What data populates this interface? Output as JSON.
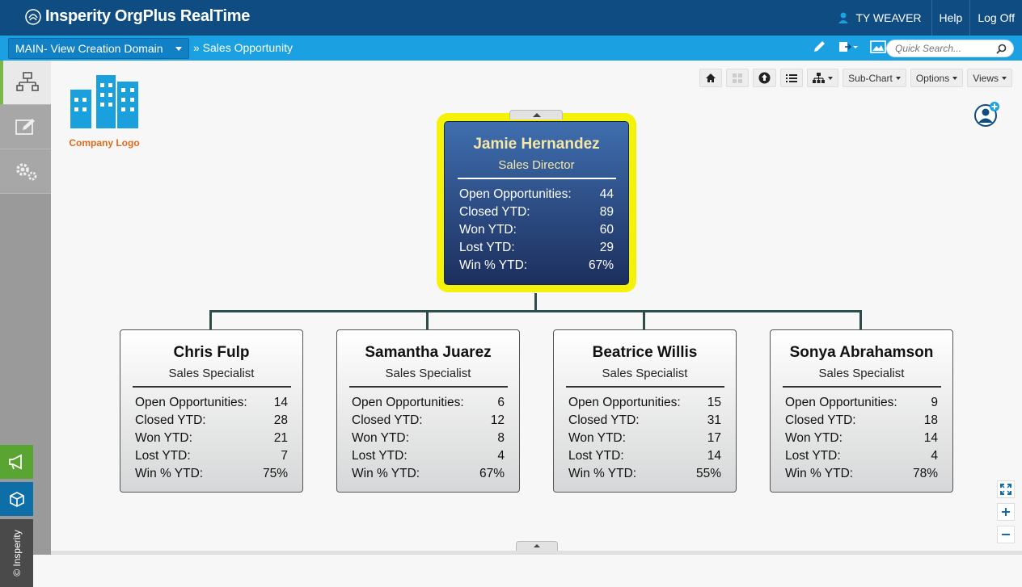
{
  "header": {
    "app_title": "Insperity OrgPlus RealTime",
    "user_name": "TY WEAVER",
    "help": "Help",
    "logoff": "Log Off"
  },
  "subbar": {
    "domain": "MAIN- View Creation Domain",
    "breadcrumb": "» Sales Opportunity",
    "search_placeholder": "Quick Search..."
  },
  "toolbar": {
    "subchart": "Sub-Chart",
    "options": "Options",
    "views": "Views"
  },
  "company_logo_caption": "Company Logo",
  "side": {
    "copyright": "© Insperity"
  },
  "root": {
    "name": "Jamie Hernandez",
    "title": "Sales Director",
    "stats": [
      {
        "label": "Open Opportunities:",
        "value": "44"
      },
      {
        "label": "Closed YTD:",
        "value": "89"
      },
      {
        "label": "Won YTD:",
        "value": "60"
      },
      {
        "label": "Lost YTD:",
        "value": "29"
      },
      {
        "label": "Win % YTD:",
        "value": "67%"
      }
    ]
  },
  "children": [
    {
      "name": "Chris Fulp",
      "title": "Sales Specialist",
      "stats": [
        {
          "label": "Open Opportunities:",
          "value": "14"
        },
        {
          "label": "Closed YTD:",
          "value": "28"
        },
        {
          "label": "Won YTD:",
          "value": "21"
        },
        {
          "label": "Lost YTD:",
          "value": "7"
        },
        {
          "label": "Win % YTD:",
          "value": "75%"
        }
      ]
    },
    {
      "name": "Samantha Juarez",
      "title": "Sales Specialist",
      "stats": [
        {
          "label": "Open Opportunities:",
          "value": "6"
        },
        {
          "label": "Closed YTD:",
          "value": "12"
        },
        {
          "label": "Won YTD:",
          "value": "8"
        },
        {
          "label": "Lost YTD:",
          "value": "4"
        },
        {
          "label": "Win % YTD:",
          "value": "67%"
        }
      ]
    },
    {
      "name": "Beatrice Willis",
      "title": "Sales Specialist",
      "stats": [
        {
          "label": "Open Opportunities:",
          "value": "15"
        },
        {
          "label": "Closed YTD:",
          "value": "31"
        },
        {
          "label": "Won YTD:",
          "value": "17"
        },
        {
          "label": "Lost YTD:",
          "value": "14"
        },
        {
          "label": "Win % YTD:",
          "value": "55%"
        }
      ]
    },
    {
      "name": "Sonya Abrahamson",
      "title": "Sales Specialist",
      "stats": [
        {
          "label": "Open Opportunities:",
          "value": "9"
        },
        {
          "label": "Closed YTD:",
          "value": "18"
        },
        {
          "label": "Won YTD:",
          "value": "14"
        },
        {
          "label": "Lost YTD:",
          "value": "4"
        },
        {
          "label": "Win % YTD:",
          "value": "78%"
        }
      ]
    }
  ]
}
